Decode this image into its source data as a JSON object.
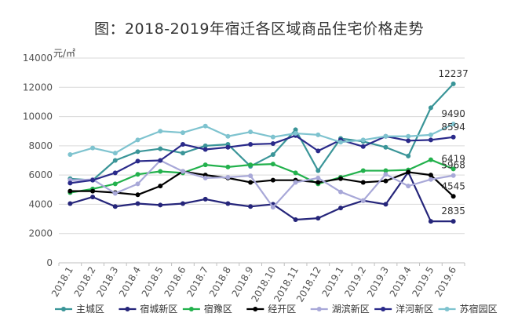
{
  "chart_data": {
    "type": "line",
    "title": "图：2018-2019年宿迁各区域商品住宅价格走势",
    "ylabel": "元/㎡",
    "xlabel": "",
    "ylim": [
      0,
      14000
    ],
    "yticks": [
      0,
      2000,
      4000,
      6000,
      8000,
      10000,
      12000,
      14000
    ],
    "grid": true,
    "legend_position": "bottom",
    "x": [
      "2018.1",
      "2018.2",
      "2018.3",
      "2018.4",
      "2018.5",
      "2018.6",
      "2018.7",
      "2018.8",
      "2018.9",
      "2018.10",
      "2018.11",
      "2018.12",
      "2019.1",
      "2019.2",
      "2019.3",
      "2019.4",
      "2019.5",
      "2019.6"
    ],
    "series": [
      {
        "name": "主城区",
        "color": "#3a9598",
        "values": [
          5750,
          5650,
          7000,
          7600,
          7800,
          7500,
          8000,
          8100,
          6600,
          7400,
          9100,
          6300,
          8500,
          8300,
          7900,
          7300,
          10600,
          12237
        ]
      },
      {
        "name": "宿城新区",
        "color": "#25257a",
        "values": [
          4050,
          4500,
          3850,
          4050,
          3950,
          4050,
          4350,
          4050,
          3850,
          4000,
          2950,
          3050,
          3750,
          4250,
          4000,
          6200,
          2835,
          2835
        ]
      },
      {
        "name": "宿豫区",
        "color": "#22b14c",
        "values": [
          4800,
          5050,
          5400,
          6050,
          6250,
          6150,
          6700,
          6550,
          6700,
          6750,
          6150,
          5400,
          5850,
          6300,
          6300,
          6350,
          7050,
          6419
        ]
      },
      {
        "name": "经开区",
        "color": "#000000",
        "values": [
          4900,
          4900,
          4800,
          4650,
          5250,
          6250,
          6000,
          5800,
          5500,
          5650,
          5650,
          5500,
          5750,
          5500,
          5600,
          6200,
          6000,
          4545
        ]
      },
      {
        "name": "湖滨新区",
        "color": "#a8a8d8",
        "values": [
          5650,
          5700,
          4750,
          5400,
          7000,
          6250,
          5800,
          5850,
          5950,
          3800,
          5500,
          5800,
          4850,
          4250,
          6050,
          5250,
          5700,
          5968
        ]
      },
      {
        "name": "洋河新区",
        "color": "#2a2a8a",
        "values": [
          5450,
          5650,
          6150,
          6950,
          7000,
          8100,
          7750,
          7900,
          8100,
          8150,
          8700,
          7650,
          8400,
          7950,
          8650,
          8350,
          8400,
          8594
        ]
      },
      {
        "name": "苏宿园区",
        "color": "#7ec3cf",
        "values": [
          7400,
          7850,
          7500,
          8400,
          9000,
          8900,
          9350,
          8650,
          8950,
          8600,
          8850,
          8750,
          8250,
          8400,
          8650,
          8650,
          8750,
          9490
        ]
      }
    ],
    "end_labels": [
      {
        "text": "12237",
        "series": "主城区"
      },
      {
        "text": "9490",
        "series": "苏宿园区"
      },
      {
        "text": "8594",
        "series": "洋河新区"
      },
      {
        "text": "6419",
        "series": "宿豫区"
      },
      {
        "text": "5968",
        "series": "湖滨新区"
      },
      {
        "text": "4545",
        "series": "经开区"
      },
      {
        "text": "2835",
        "series": "宿城新区"
      }
    ]
  }
}
